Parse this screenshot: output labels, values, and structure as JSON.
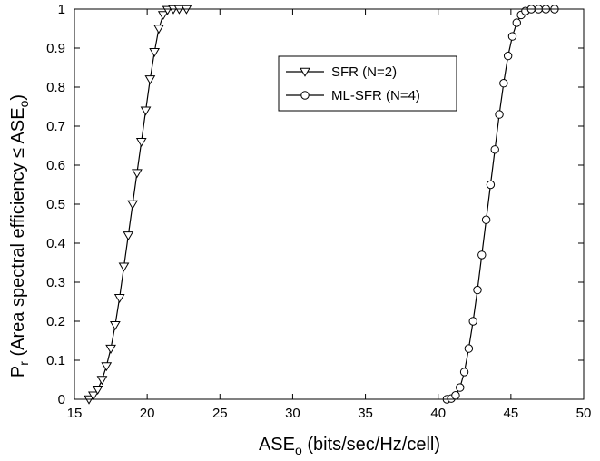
{
  "chart_data": {
    "type": "line",
    "title": "",
    "xlabel": {
      "main": "ASE",
      "sub": "o",
      "rest": " (bits/sec/Hz/cell)"
    },
    "ylabel": {
      "p": "P",
      "p_sub": "r",
      "mid": " (Area spectral efficiency ",
      "leq": "≤",
      "ase": " ASE",
      "ase_sub": "o",
      "close": ")"
    },
    "xlim": [
      15,
      50
    ],
    "ylim": [
      0,
      1
    ],
    "xticks": [
      15,
      20,
      25,
      30,
      35,
      40,
      45,
      50
    ],
    "xtick_labels": [
      "15",
      "20",
      "25",
      "30",
      "35",
      "40",
      "45",
      "50"
    ],
    "yticks": [
      0,
      0.1,
      0.2,
      0.3,
      0.4,
      0.5,
      0.6,
      0.7,
      0.8,
      0.9,
      1
    ],
    "ytick_labels": [
      "0",
      "0.1",
      "0.2",
      "0.3",
      "0.4",
      "0.5",
      "0.6",
      "0.7",
      "0.8",
      "0.9",
      "1"
    ],
    "grid": false,
    "legend_position": "top-center-right",
    "series": [
      {
        "name": "SFR (N=2)",
        "marker": "triangle-down",
        "color": "#000000",
        "points": [
          [
            16.0,
            0.0
          ],
          [
            16.3,
            0.01
          ],
          [
            16.6,
            0.025
          ],
          [
            16.9,
            0.05
          ],
          [
            17.2,
            0.085
          ],
          [
            17.5,
            0.13
          ],
          [
            17.8,
            0.19
          ],
          [
            18.1,
            0.26
          ],
          [
            18.4,
            0.34
          ],
          [
            18.7,
            0.42
          ],
          [
            19.0,
            0.5
          ],
          [
            19.3,
            0.58
          ],
          [
            19.6,
            0.66
          ],
          [
            19.9,
            0.74
          ],
          [
            20.2,
            0.82
          ],
          [
            20.5,
            0.89
          ],
          [
            20.8,
            0.95
          ],
          [
            21.1,
            0.985
          ],
          [
            21.4,
            0.998
          ],
          [
            21.8,
            1.0
          ],
          [
            22.2,
            1.0
          ],
          [
            22.7,
            1.0
          ]
        ]
      },
      {
        "name": "ML-SFR (N=4)",
        "marker": "circle",
        "color": "#000000",
        "points": [
          [
            40.6,
            0.0
          ],
          [
            40.9,
            0.002
          ],
          [
            41.2,
            0.01
          ],
          [
            41.5,
            0.03
          ],
          [
            41.8,
            0.07
          ],
          [
            42.1,
            0.13
          ],
          [
            42.4,
            0.2
          ],
          [
            42.7,
            0.28
          ],
          [
            43.0,
            0.37
          ],
          [
            43.3,
            0.46
          ],
          [
            43.6,
            0.55
          ],
          [
            43.9,
            0.64
          ],
          [
            44.2,
            0.73
          ],
          [
            44.5,
            0.81
          ],
          [
            44.8,
            0.88
          ],
          [
            45.1,
            0.93
          ],
          [
            45.4,
            0.965
          ],
          [
            45.7,
            0.985
          ],
          [
            46.0,
            0.995
          ],
          [
            46.4,
            1.0
          ],
          [
            46.9,
            1.0
          ],
          [
            47.4,
            1.0
          ],
          [
            48.0,
            1.0
          ]
        ]
      }
    ]
  }
}
